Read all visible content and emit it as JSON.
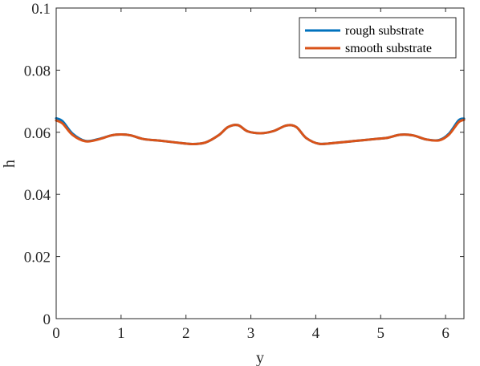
{
  "chart_data": {
    "type": "line",
    "xlabel": "y",
    "ylabel": "h",
    "xlim": [
      0,
      6.2832
    ],
    "ylim": [
      0,
      0.1
    ],
    "x_ticks": [
      0,
      1,
      2,
      3,
      4,
      5,
      6
    ],
    "y_ticks": [
      0,
      0.02,
      0.04,
      0.06,
      0.08,
      0.1
    ],
    "x_tick_labels": [
      "0",
      "1",
      "2",
      "3",
      "4",
      "5",
      "6"
    ],
    "y_tick_labels": [
      "0",
      "0.02",
      "0.04",
      "0.06",
      "0.08",
      "0.1"
    ],
    "grid": false,
    "legend_position": "top-right",
    "colors": {
      "rough": "#0072BD",
      "smooth": "#D95319",
      "axis": "#262626"
    },
    "series": [
      {
        "name": "rough substrate",
        "x": [
          0,
          0.1,
          0.25,
          0.45,
          0.65,
          0.85,
          1.0,
          1.15,
          1.35,
          1.6,
          1.85,
          2.1,
          2.3,
          2.5,
          2.65,
          2.8,
          2.95,
          3.15,
          3.35,
          3.55,
          3.7,
          3.85,
          4.05,
          4.3,
          4.6,
          4.9,
          5.1,
          5.3,
          5.5,
          5.7,
          5.9,
          6.05,
          6.2,
          6.2832
        ],
        "values": [
          0.0645,
          0.0635,
          0.0596,
          0.0572,
          0.0578,
          0.059,
          0.0593,
          0.059,
          0.0578,
          0.0573,
          0.0567,
          0.0562,
          0.0567,
          0.059,
          0.0617,
          0.0623,
          0.0603,
          0.0597,
          0.0604,
          0.0622,
          0.0617,
          0.0582,
          0.0563,
          0.0566,
          0.0572,
          0.0578,
          0.0582,
          0.0592,
          0.059,
          0.0577,
          0.0575,
          0.0595,
          0.0638,
          0.0644
        ]
      },
      {
        "name": "smooth substrate",
        "x": [
          0,
          0.1,
          0.25,
          0.45,
          0.65,
          0.85,
          1.0,
          1.15,
          1.35,
          1.6,
          1.85,
          2.1,
          2.3,
          2.5,
          2.65,
          2.8,
          2.95,
          3.15,
          3.35,
          3.55,
          3.7,
          3.85,
          4.05,
          4.3,
          4.6,
          4.9,
          5.1,
          5.3,
          5.5,
          5.7,
          5.9,
          6.05,
          6.2,
          6.2832
        ],
        "values": [
          0.0638,
          0.0628,
          0.0592,
          0.0571,
          0.0577,
          0.059,
          0.0593,
          0.059,
          0.0578,
          0.0573,
          0.0567,
          0.0562,
          0.0567,
          0.059,
          0.0617,
          0.0623,
          0.0603,
          0.0597,
          0.0604,
          0.0622,
          0.0617,
          0.0582,
          0.0563,
          0.0566,
          0.0572,
          0.0578,
          0.0582,
          0.0592,
          0.059,
          0.0577,
          0.0574,
          0.0592,
          0.0632,
          0.064
        ]
      }
    ]
  }
}
